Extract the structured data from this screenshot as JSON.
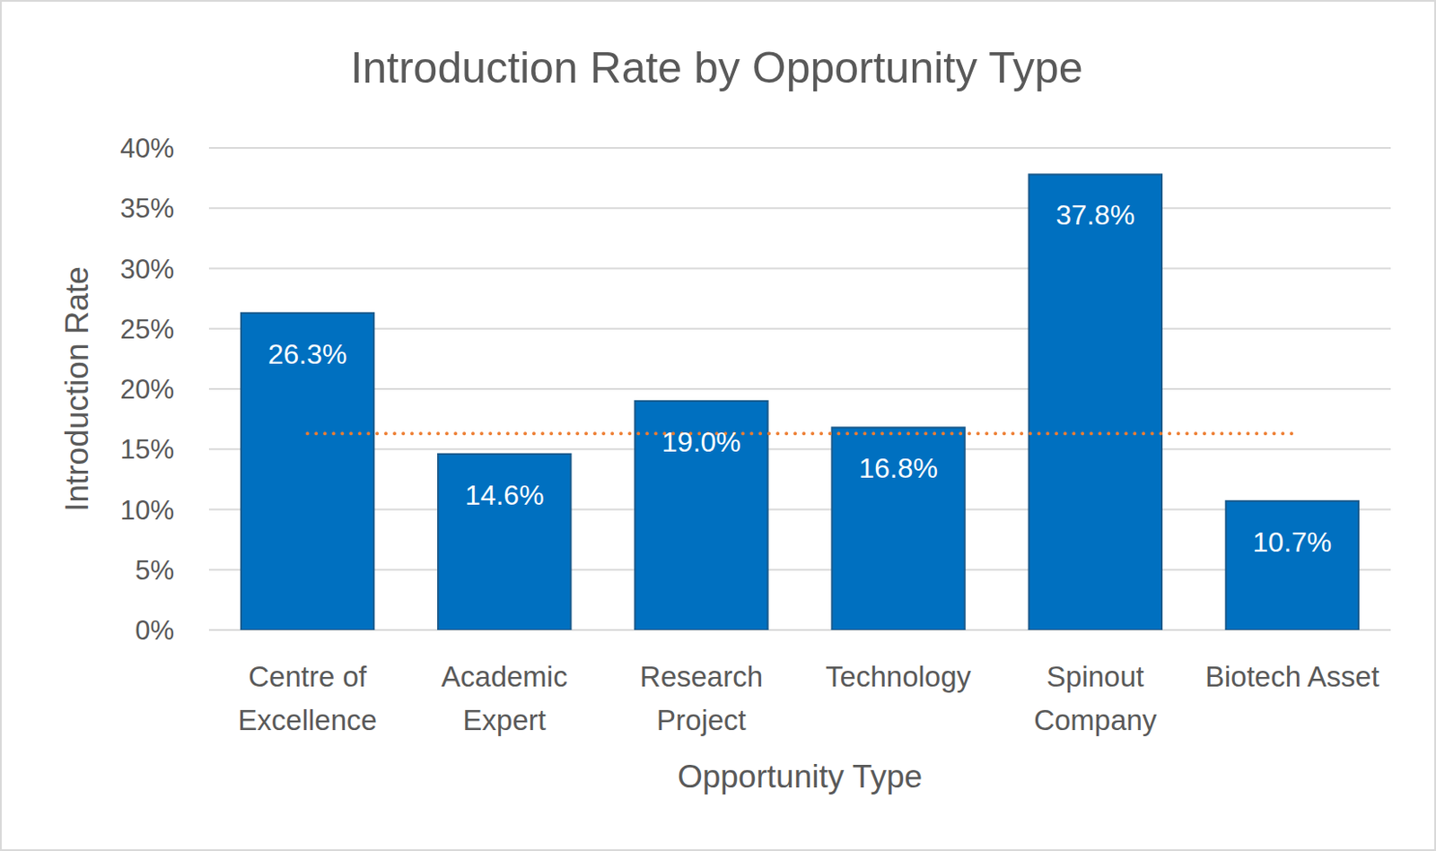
{
  "chart_data": {
    "type": "bar",
    "title": "Introduction Rate by Opportunity Type",
    "x_label": "Opportunity Type",
    "y_label": "Introduction Rate",
    "categories": [
      "Centre of Excellence",
      "Academic Expert",
      "Research Project",
      "Technology",
      "Spinout Company",
      "Biotech Asset"
    ],
    "values": [
      26.3,
      14.6,
      19.0,
      16.8,
      37.8,
      10.7
    ],
    "value_labels": [
      "26.3%",
      "14.6%",
      "19.0%",
      "16.8%",
      "37.8%",
      "10.7%"
    ],
    "color": "#0070c0",
    "data_labels": true,
    "grid": true,
    "ylim": [
      0,
      40
    ],
    "yticks": [
      {
        "value": 0,
        "label": "0%"
      },
      {
        "value": 5,
        "label": "5%"
      },
      {
        "value": 10,
        "label": "10%"
      },
      {
        "value": 15,
        "label": "15%"
      },
      {
        "value": 20,
        "label": "20%"
      },
      {
        "value": 25,
        "label": "25%"
      },
      {
        "value": 30,
        "label": "30%"
      },
      {
        "value": 35,
        "label": "35%"
      },
      {
        "value": 40,
        "label": "40%"
      }
    ],
    "reference_line": {
      "value": 16.3,
      "color": "#ed7d31",
      "line_style": "dotted"
    }
  }
}
